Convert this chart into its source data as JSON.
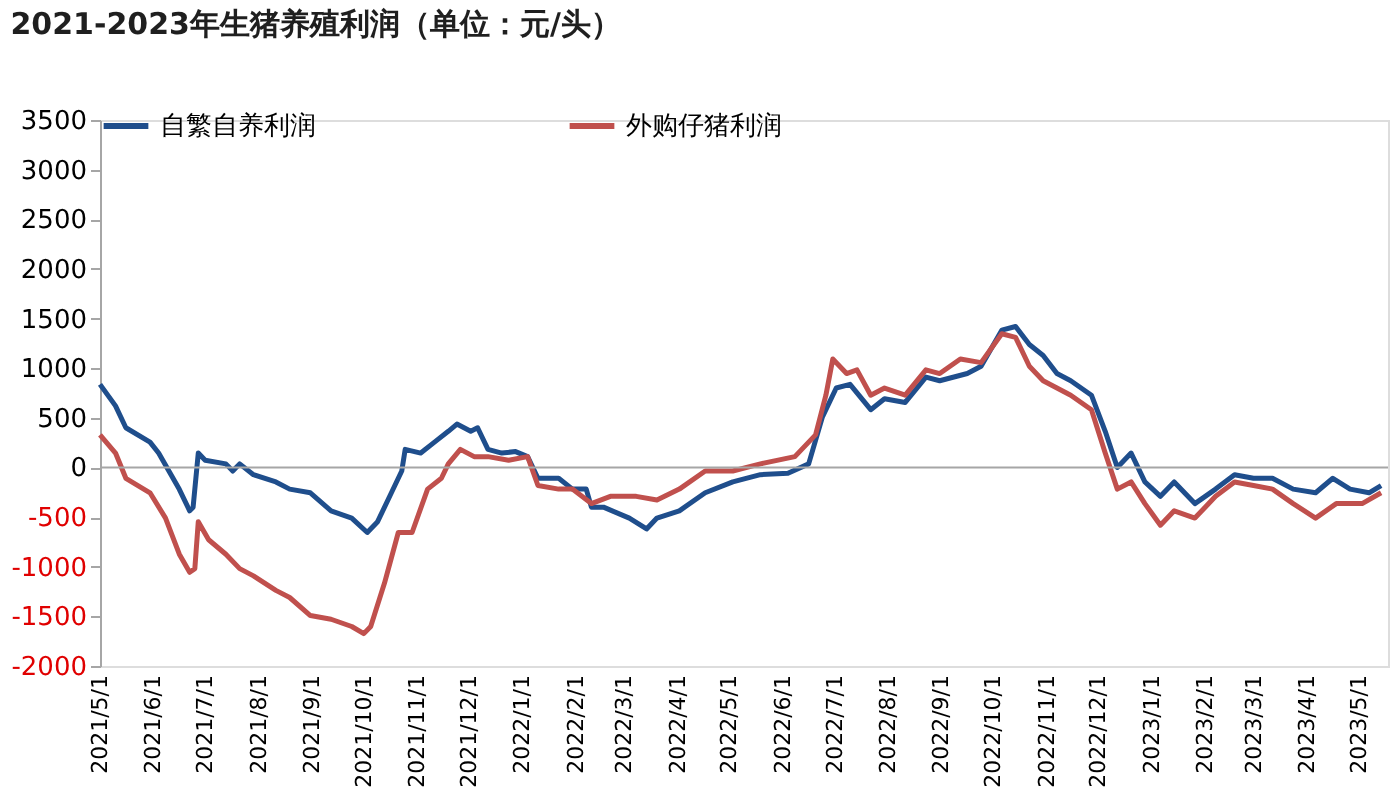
{
  "chart_data": {
    "type": "line",
    "title": "2021-2023年生猪养殖利润（单位：元/头）",
    "series": [
      {
        "name": "自繁自养利润",
        "color": "#1f4e8c",
        "x": [
          "2021-05-01",
          "2021-05-10",
          "2021-05-16",
          "2021-05-30",
          "2021-06-04",
          "2021-06-16",
          "2021-06-22",
          "2021-06-24",
          "2021-06-27",
          "2021-07-01",
          "2021-07-13",
          "2021-07-17",
          "2021-07-21",
          "2021-07-29",
          "2021-08-11",
          "2021-08-19",
          "2021-08-31",
          "2021-09-12",
          "2021-09-24",
          "2021-10-03",
          "2021-10-09",
          "2021-10-17",
          "2021-10-23",
          "2021-10-25",
          "2021-11-03",
          "2021-11-11",
          "2021-11-19",
          "2021-11-24",
          "2021-12-02",
          "2021-12-06",
          "2021-12-12",
          "2021-12-20",
          "2021-12-28",
          "2022-01-04",
          "2022-01-10",
          "2022-01-22",
          "2022-01-30",
          "2022-02-07",
          "2022-02-10",
          "2022-02-17",
          "2022-03-04",
          "2022-03-14",
          "2022-03-20",
          "2022-04-02",
          "2022-04-17",
          "2022-05-03",
          "2022-05-19",
          "2022-06-04",
          "2022-06-16",
          "2022-06-24",
          "2022-07-02",
          "2022-07-10",
          "2022-07-22",
          "2022-07-30",
          "2022-08-11",
          "2022-08-23",
          "2022-08-31",
          "2022-09-16",
          "2022-09-24",
          "2022-10-06",
          "2022-10-14",
          "2022-10-22",
          "2022-10-30",
          "2022-11-07",
          "2022-11-15",
          "2022-11-27",
          "2022-12-05",
          "2022-12-12",
          "2022-12-20",
          "2022-12-28",
          "2023-01-06",
          "2023-01-14",
          "2023-01-26",
          "2023-02-07",
          "2023-02-18",
          "2023-03-01",
          "2023-03-12",
          "2023-03-24",
          "2023-04-06",
          "2023-04-16",
          "2023-04-26",
          "2023-05-07",
          "2023-05-14"
        ],
        "values": [
          837,
          620,
          400,
          255,
          145,
          -220,
          -437,
          -400,
          145,
          73,
          36,
          -36,
          36,
          -73,
          -146,
          -218,
          -255,
          -437,
          -510,
          -655,
          -546,
          -255,
          -36,
          182,
          145,
          255,
          364,
          437,
          364,
          400,
          182,
          145,
          160,
          109,
          -109,
          -109,
          -218,
          -218,
          -400,
          -400,
          -510,
          -619,
          -510,
          -437,
          -255,
          -146,
          -73,
          -58,
          36,
          510,
          800,
          837,
          582,
          692,
          655,
          910,
          873,
          946,
          1019,
          1383,
          1420,
          1238,
          1128,
          946,
          873,
          728,
          364,
          0,
          145,
          -146,
          -291,
          -146,
          -364,
          -218,
          -73,
          -109,
          -109,
          -218,
          -255,
          -109,
          -218,
          -255,
          -182
        ]
      },
      {
        "name": "外购仔猪利润",
        "color": "#c0504d",
        "x": [
          "2021-05-01",
          "2021-05-10",
          "2021-05-16",
          "2021-05-30",
          "2021-06-08",
          "2021-06-16",
          "2021-06-22",
          "2021-06-25",
          "2021-06-27",
          "2021-07-03",
          "2021-07-13",
          "2021-07-21",
          "2021-07-29",
          "2021-08-11",
          "2021-08-19",
          "2021-08-31",
          "2021-09-12",
          "2021-09-24",
          "2021-10-01",
          "2021-10-05",
          "2021-10-13",
          "2021-10-21",
          "2021-10-29",
          "2021-11-07",
          "2021-11-15",
          "2021-11-19",
          "2021-11-26",
          "2021-12-04",
          "2021-12-12",
          "2021-12-24",
          "2022-01-04",
          "2022-01-10",
          "2022-01-22",
          "2022-01-30",
          "2022-02-10",
          "2022-02-21",
          "2022-03-08",
          "2022-03-20",
          "2022-04-02",
          "2022-04-17",
          "2022-05-03",
          "2022-05-19",
          "2022-06-08",
          "2022-06-20",
          "2022-06-26",
          "2022-06-30",
          "2022-07-08",
          "2022-07-14",
          "2022-07-22",
          "2022-07-30",
          "2022-08-11",
          "2022-08-23",
          "2022-08-31",
          "2022-09-12",
          "2022-09-24",
          "2022-10-06",
          "2022-10-14",
          "2022-10-22",
          "2022-10-30",
          "2022-11-07",
          "2022-11-15",
          "2022-11-27",
          "2022-12-05",
          "2022-12-12",
          "2022-12-20",
          "2022-12-28",
          "2023-01-06",
          "2023-01-14",
          "2023-01-26",
          "2023-02-07",
          "2023-02-18",
          "2023-03-01",
          "2023-03-12",
          "2023-03-24",
          "2023-04-06",
          "2023-04-18",
          "2023-05-03",
          "2023-05-14"
        ],
        "values": [
          327,
          145,
          -109,
          -255,
          -510,
          -874,
          -1056,
          -1019,
          -546,
          -728,
          -874,
          -1019,
          -1092,
          -1238,
          -1310,
          -1492,
          -1529,
          -1602,
          -1674,
          -1602,
          -1165,
          -655,
          -655,
          -218,
          -109,
          36,
          182,
          109,
          109,
          73,
          109,
          -182,
          -218,
          -218,
          -364,
          -291,
          -291,
          -328,
          -218,
          -36,
          -36,
          36,
          109,
          328,
          728,
          1092,
          946,
          983,
          728,
          800,
          728,
          983,
          946,
          1092,
          1056,
          1347,
          1310,
          1019,
          873,
          800,
          728,
          582,
          145,
          -218,
          -146,
          -364,
          -582,
          -437,
          -510,
          -291,
          -146,
          -182,
          -218,
          -364,
          -510,
          -364,
          -364,
          -255
        ]
      }
    ],
    "xlim": [
      "2021-05-01",
      "2023-05-18"
    ],
    "xticks": [
      {
        "value": "2021-05-01",
        "label": "2021/5/1"
      },
      {
        "value": "2021-06-01",
        "label": "2021/6/1"
      },
      {
        "value": "2021-07-01",
        "label": "2021/7/1"
      },
      {
        "value": "2021-08-01",
        "label": "2021/8/1"
      },
      {
        "value": "2021-09-01",
        "label": "2021/9/1"
      },
      {
        "value": "2021-10-01",
        "label": "2021/10/1"
      },
      {
        "value": "2021-11-01",
        "label": "2021/11/1"
      },
      {
        "value": "2021-12-01",
        "label": "2021/12/1"
      },
      {
        "value": "2022-01-01",
        "label": "2022/1/1"
      },
      {
        "value": "2022-02-01",
        "label": "2022/2/1"
      },
      {
        "value": "2022-03-01",
        "label": "2022/3/1"
      },
      {
        "value": "2022-04-01",
        "label": "2022/4/1"
      },
      {
        "value": "2022-05-01",
        "label": "2022/5/1"
      },
      {
        "value": "2022-06-01",
        "label": "2022/6/1"
      },
      {
        "value": "2022-07-01",
        "label": "2022/7/1"
      },
      {
        "value": "2022-08-01",
        "label": "2022/8/1"
      },
      {
        "value": "2022-09-01",
        "label": "2022/9/1"
      },
      {
        "value": "2022-10-01",
        "label": "2022/10/1"
      },
      {
        "value": "2022-11-01",
        "label": "2022/11/1"
      },
      {
        "value": "2022-12-01",
        "label": "2022/12/1"
      },
      {
        "value": "2023-01-01",
        "label": "2023/1/1"
      },
      {
        "value": "2023-02-01",
        "label": "2023/2/1"
      },
      {
        "value": "2023-03-01",
        "label": "2023/3/1"
      },
      {
        "value": "2023-04-01",
        "label": "2023/4/1"
      },
      {
        "value": "2023-05-01",
        "label": "2023/5/1"
      }
    ],
    "ylim": [
      -2000,
      3500
    ],
    "yticks": [
      -2000,
      -1500,
      -1000,
      -500,
      0,
      500,
      1000,
      1500,
      2000,
      2500,
      3000,
      3500
    ],
    "ref_lines": [
      {
        "axis": "y",
        "value": 0,
        "color": "#a6a6a6"
      }
    ],
    "grid": false,
    "legend": "top",
    "marker": "none",
    "line_style": "solid"
  }
}
